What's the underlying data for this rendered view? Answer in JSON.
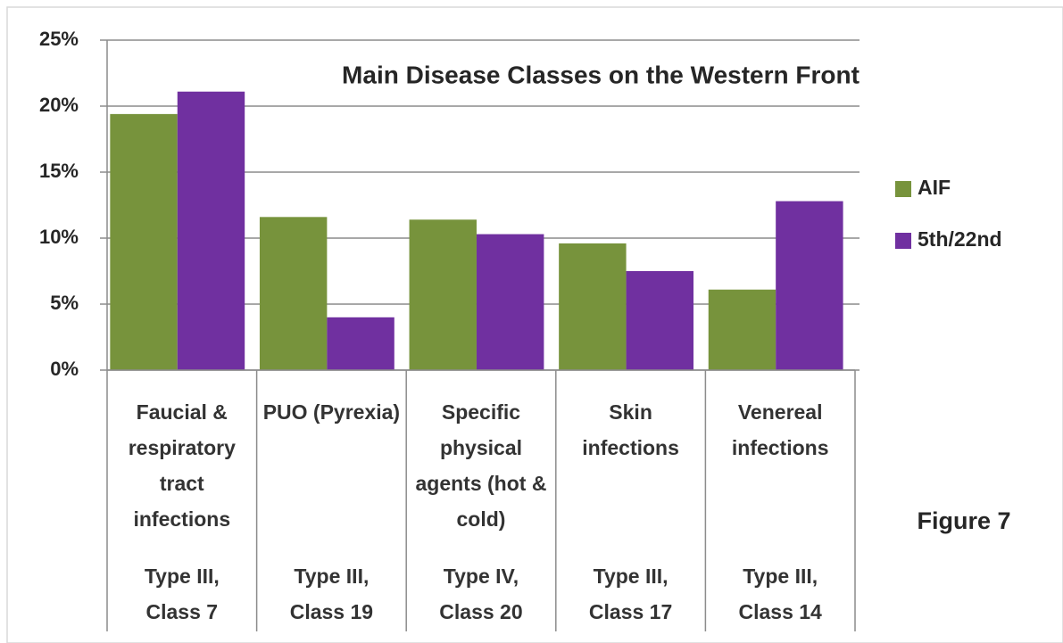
{
  "chart_data": {
    "type": "bar",
    "title": "Main Disease Classes  on the Western Front",
    "categories": [
      "Faucial & respiratory tract infections",
      "PUO (Pyrexia)",
      "Specific physical agents (hot & cold)",
      "Skin infections",
      "Venereal infections"
    ],
    "category_subtitles": [
      "Type III, Class 7",
      "Type III, Class 19",
      "Type IV, Class 20",
      "Type III, Class 17",
      "Type III, Class 14"
    ],
    "series": [
      {
        "name": "AIF",
        "color": "#77933c",
        "values": [
          19.4,
          11.6,
          11.4,
          9.6,
          6.1
        ]
      },
      {
        "name": "5th/22nd",
        "color": "#7030a0",
        "values": [
          21.1,
          4.0,
          10.3,
          7.5,
          12.8
        ]
      }
    ],
    "ylim": [
      0,
      25
    ],
    "yticks": [
      {
        "value": 0,
        "label": "0%"
      },
      {
        "value": 5,
        "label": "5%"
      },
      {
        "value": 10,
        "label": "10%"
      },
      {
        "value": 15,
        "label": "15%"
      },
      {
        "value": 20,
        "label": "20%"
      },
      {
        "value": 25,
        "label": "25%"
      }
    ],
    "grid": true,
    "legend": "right",
    "annotation": "Figure 7"
  }
}
